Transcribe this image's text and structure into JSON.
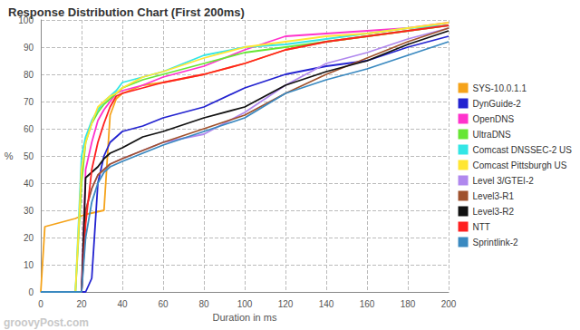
{
  "chart_data": {
    "type": "line",
    "title": "Response Distribution Chart (First 200ms)",
    "x_label": "Duration in ms",
    "y_label": "%",
    "annotations": [
      "groovyPost.com"
    ],
    "x": [
      0,
      2,
      17,
      20,
      22,
      25,
      28,
      31,
      34,
      37,
      40,
      50,
      60,
      80,
      100,
      120,
      140,
      160,
      180,
      200
    ],
    "series": [
      {
        "name": "SYS-10.0.1.1",
        "color": "#f5a31a",
        "values": [
          0,
          24,
          27,
          28,
          28.5,
          29,
          29.5,
          30,
          65,
          71,
          73,
          76,
          77,
          80,
          84,
          89,
          92,
          94,
          96,
          98
        ]
      },
      {
        "name": "DynGuide-2",
        "color": "#2323d0",
        "values": [
          0,
          0,
          0,
          0,
          0,
          5,
          40,
          50,
          55,
          57,
          59,
          61,
          64,
          68,
          75,
          80,
          83,
          85,
          90,
          94
        ]
      },
      {
        "name": "OpenDNS",
        "color": "#ff33cc",
        "values": [
          0,
          0,
          0,
          0,
          45,
          55,
          63,
          67,
          70,
          73,
          74,
          76,
          79,
          83,
          89,
          94,
          95,
          96,
          97,
          99
        ]
      },
      {
        "name": "UltraDNS",
        "color": "#66e633",
        "values": [
          0,
          0,
          0,
          40,
          55,
          62,
          66,
          69,
          71,
          73,
          75,
          78,
          80,
          84,
          88,
          90,
          92,
          94,
          96,
          98
        ]
      },
      {
        "name": "Comcast DNSSEC-2 US",
        "color": "#33e6e6",
        "values": [
          0,
          0,
          0,
          50,
          57,
          63,
          67,
          70,
          72,
          74,
          77,
          79,
          81,
          87,
          90,
          91,
          93,
          95,
          97,
          98
        ]
      },
      {
        "name": "Comcast Pittsburgh US",
        "color": "#ffe633",
        "values": [
          0,
          0,
          0,
          45,
          55,
          62,
          68,
          70,
          72,
          73,
          75,
          79,
          81,
          86,
          90,
          92,
          94,
          95,
          97,
          99
        ]
      },
      {
        "name": "Level 3/GTEI-2",
        "color": "#b088ee",
        "values": [
          0,
          0,
          0,
          0,
          30,
          38,
          43,
          45,
          47,
          48,
          49,
          52,
          55,
          58,
          66,
          76,
          84,
          88,
          93,
          97
        ]
      },
      {
        "name": "Level3-R1",
        "color": "#a0522d",
        "values": [
          0,
          0,
          0,
          0,
          30,
          38,
          43,
          45,
          47,
          48,
          49,
          52,
          55,
          60,
          65,
          73,
          80,
          86,
          92,
          97
        ]
      },
      {
        "name": "Level3-R2",
        "color": "#111111",
        "values": [
          0,
          0,
          0,
          0,
          42,
          44,
          46,
          49,
          51,
          52,
          53,
          57,
          59,
          64,
          68,
          76,
          81,
          85,
          91,
          96
        ]
      },
      {
        "name": "NTT",
        "color": "#ff2020",
        "values": [
          0,
          0,
          0,
          0,
          25,
          45,
          55,
          62,
          68,
          72,
          73,
          75,
          77,
          80,
          84,
          89,
          92,
          94,
          96,
          98
        ]
      },
      {
        "name": "Sprintlink-2",
        "color": "#3a89c0",
        "values": [
          0,
          0,
          0,
          0,
          20,
          33,
          40,
          44,
          46,
          47,
          48,
          51,
          54,
          59,
          64,
          73,
          78,
          82,
          87,
          92
        ]
      }
    ],
    "xlim": [
      0,
      200
    ],
    "xticks": [
      0,
      20,
      40,
      60,
      80,
      100,
      120,
      140,
      160,
      180,
      200
    ],
    "ylim": [
      0,
      100
    ],
    "yticks": [
      0,
      10,
      20,
      30,
      40,
      50,
      60,
      70,
      80,
      90,
      100
    ],
    "grid": true,
    "legend": "right"
  }
}
